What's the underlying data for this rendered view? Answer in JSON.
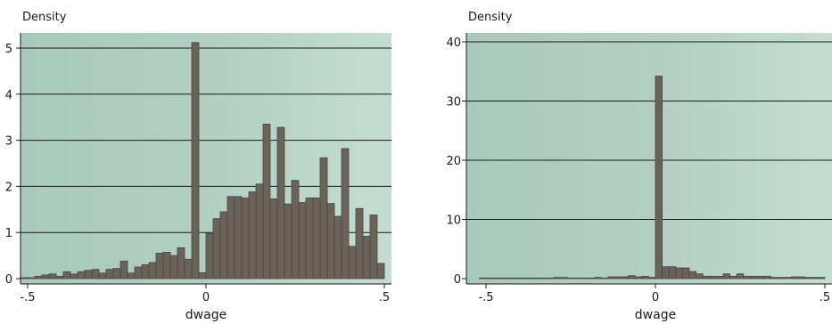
{
  "chart_data": [
    {
      "type": "bar",
      "title": "",
      "ylabel": "Density",
      "xlabel": "dwage",
      "ylim": [
        0,
        5.25
      ],
      "xlim": [
        -0.525,
        0.525
      ],
      "yticks": [
        0,
        1,
        2,
        3,
        4,
        5
      ],
      "xticks": [
        -0.5,
        0,
        0.5
      ],
      "xtick_labels": [
        "-.5",
        "0",
        ".5"
      ],
      "grid": true,
      "bin_width": 0.02,
      "bin_starts": [
        -0.52,
        -0.5,
        -0.48,
        -0.46,
        -0.44,
        -0.42,
        -0.4,
        -0.38,
        -0.36,
        -0.34,
        -0.32,
        -0.3,
        -0.28,
        -0.26,
        -0.24,
        -0.22,
        -0.2,
        -0.18,
        -0.16,
        -0.14,
        -0.12,
        -0.1,
        -0.08,
        -0.06,
        -0.04,
        -0.02,
        0.0,
        0.02,
        0.04,
        0.06,
        0.08,
        0.1,
        0.12,
        0.14,
        0.16,
        0.18,
        0.2,
        0.22,
        0.24,
        0.26,
        0.28,
        0.3,
        0.32,
        0.34,
        0.36,
        0.38,
        0.4,
        0.42,
        0.44,
        0.46,
        0.48
      ],
      "values": [
        0.02,
        0.02,
        0.05,
        0.08,
        0.1,
        0.05,
        0.15,
        0.1,
        0.15,
        0.18,
        0.2,
        0.12,
        0.2,
        0.22,
        0.38,
        0.12,
        0.25,
        0.3,
        0.35,
        0.55,
        0.57,
        0.5,
        0.67,
        0.42,
        5.12,
        0.13,
        0.98,
        1.3,
        1.45,
        1.78,
        1.78,
        1.75,
        1.88,
        2.05,
        3.35,
        1.73,
        3.28,
        1.62,
        2.13,
        1.65,
        1.75,
        1.75,
        2.62,
        1.63,
        1.35,
        2.82,
        0.7,
        1.52,
        0.92,
        1.38,
        0.33
      ]
    },
    {
      "type": "bar",
      "title": "",
      "ylabel": "Density",
      "xlabel": "dwage",
      "ylim": [
        0,
        41
      ],
      "xlim": [
        -0.525,
        0.525
      ],
      "yticks": [
        0,
        10,
        20,
        30,
        40
      ],
      "xticks": [
        -0.5,
        0,
        0.5
      ],
      "xtick_labels": [
        "-.5",
        "0",
        ".5"
      ],
      "grid": true,
      "bin_width": 0.02,
      "bin_starts": [
        -0.52,
        -0.5,
        -0.48,
        -0.46,
        -0.44,
        -0.42,
        -0.4,
        -0.38,
        -0.36,
        -0.34,
        -0.32,
        -0.3,
        -0.28,
        -0.26,
        -0.24,
        -0.22,
        -0.2,
        -0.18,
        -0.16,
        -0.14,
        -0.12,
        -0.1,
        -0.08,
        -0.06,
        -0.04,
        -0.02,
        0.0,
        0.02,
        0.04,
        0.06,
        0.08,
        0.1,
        0.12,
        0.14,
        0.16,
        0.18,
        0.2,
        0.22,
        0.24,
        0.26,
        0.28,
        0.3,
        0.32,
        0.34,
        0.36,
        0.38,
        0.4,
        0.42,
        0.44,
        0.46,
        0.48
      ],
      "values": [
        0.1,
        0.1,
        0.1,
        0.1,
        0.1,
        0.1,
        0.1,
        0.1,
        0.1,
        0.1,
        0.1,
        0.2,
        0.2,
        0.1,
        0.1,
        0.1,
        0.1,
        0.2,
        0.1,
        0.3,
        0.3,
        0.3,
        0.5,
        0.3,
        0.4,
        0.2,
        34.2,
        2.0,
        2.0,
        1.8,
        1.8,
        1.2,
        0.8,
        0.4,
        0.4,
        0.4,
        0.8,
        0.4,
        0.8,
        0.4,
        0.4,
        0.4,
        0.4,
        0.2,
        0.2,
        0.2,
        0.3,
        0.3,
        0.2,
        0.2,
        0.2
      ]
    }
  ]
}
